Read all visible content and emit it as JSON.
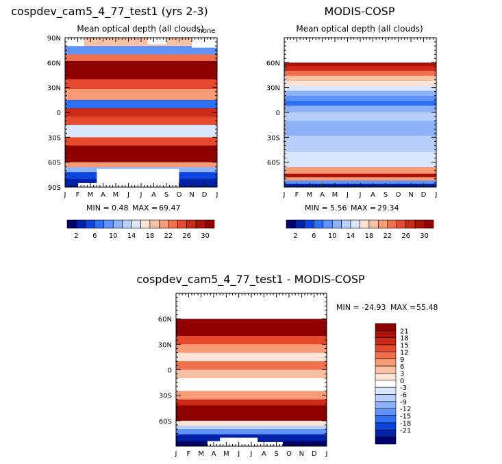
{
  "chart_data": [
    {
      "type": "heatmap",
      "title": "cospdev_cam5_4_77_test1 (yrs 2-3)",
      "subtitle": "Mean optical depth (all clouds)",
      "corner_label": "none",
      "x_ticks": [
        "J",
        "F",
        "M",
        "A",
        "M",
        "J",
        "J",
        "A",
        "S",
        "O",
        "N",
        "D",
        "J"
      ],
      "y_ticks": [
        "90N",
        "60N",
        "30N",
        "0",
        "30S",
        "60S",
        "90S"
      ],
      "ylim": [
        -90,
        90
      ],
      "stats": {
        "min_label": "MIN =",
        "min_value": "0.48",
        "max_label": "MAX =",
        "max_value": "69.47"
      },
      "lat_bands": [
        {
          "lat": [
            80,
            90
          ],
          "value": 18
        },
        {
          "lat": [
            70,
            80
          ],
          "value": 8
        },
        {
          "lat": [
            62,
            70
          ],
          "value": 22
        },
        {
          "lat": [
            40,
            62
          ],
          "value": 32
        },
        {
          "lat": [
            28,
            40
          ],
          "value": 24
        },
        {
          "lat": [
            15,
            28
          ],
          "value": 20
        },
        {
          "lat": [
            5,
            15
          ],
          "value": 7
        },
        {
          "lat": [
            -5,
            5
          ],
          "value": 27
        },
        {
          "lat": [
            -15,
            -5
          ],
          "value": 24
        },
        {
          "lat": [
            -30,
            -15
          ],
          "value": 15
        },
        {
          "lat": [
            -40,
            -30
          ],
          "value": 25
        },
        {
          "lat": [
            -60,
            -40
          ],
          "value": 32
        },
        {
          "lat": [
            -66,
            -60
          ],
          "value": 20
        },
        {
          "lat": [
            -72,
            -66
          ],
          "value": 10
        },
        {
          "lat": [
            -80,
            -72
          ],
          "value": 4
        },
        {
          "lat": [
            -90,
            -80
          ],
          "value": 2
        }
      ],
      "missing_regions": [
        {
          "lat": [
            80,
            90
          ],
          "month": [
            0,
            1.5
          ]
        },
        {
          "lat": [
            82,
            90
          ],
          "month": [
            6.5,
            8
          ]
        },
        {
          "lat": [
            78,
            90
          ],
          "month": [
            10,
            12
          ]
        },
        {
          "lat": [
            -90,
            -85
          ],
          "month": [
            1,
            2.5
          ]
        },
        {
          "lat": [
            -90,
            -68
          ],
          "month": [
            2.5,
            9
          ]
        }
      ],
      "colorbar": {
        "colors": [
          "#00006e",
          "#0022a8",
          "#0c45de",
          "#2f6ff2",
          "#5f93f7",
          "#8eb2f8",
          "#b7cff9",
          "#d9e6fb",
          "#fbe3d6",
          "#f9c1a4",
          "#f69b76",
          "#f0704d",
          "#e54a2e",
          "#cb2a17",
          "#a91109",
          "#8e0000"
        ],
        "labels": [
          "2",
          "6",
          "10",
          "14",
          "18",
          "22",
          "26",
          "30"
        ]
      }
    },
    {
      "type": "heatmap",
      "title": "MODIS-COSP",
      "subtitle": "Mean optical depth (all clouds)",
      "x_ticks": [
        "J",
        "F",
        "M",
        "A",
        "M",
        "J",
        "J",
        "A",
        "S",
        "O",
        "N",
        "D",
        "J"
      ],
      "y_ticks": [
        "60N",
        "30N",
        "0",
        "30S",
        "60S"
      ],
      "ylim": [
        -90,
        90
      ],
      "stats": {
        "min_label": "MIN =",
        "min_value": "5.56",
        "max_label": "MAX =",
        "max_value": "29.34"
      },
      "lat_bands": [
        {
          "lat": [
            60,
            90
          ],
          "value": null
        },
        {
          "lat": [
            56,
            60
          ],
          "value": 29
        },
        {
          "lat": [
            50,
            56
          ],
          "value": 26
        },
        {
          "lat": [
            44,
            50
          ],
          "value": 22
        },
        {
          "lat": [
            38,
            44
          ],
          "value": 19
        },
        {
          "lat": [
            32,
            38
          ],
          "value": 17
        },
        {
          "lat": [
            26,
            32
          ],
          "value": 15
        },
        {
          "lat": [
            20,
            26
          ],
          "value": 11
        },
        {
          "lat": [
            14,
            20
          ],
          "value": 8
        },
        {
          "lat": [
            8,
            14
          ],
          "value": 6
        },
        {
          "lat": [
            0,
            8
          ],
          "value": 10
        },
        {
          "lat": [
            -10,
            0
          ],
          "value": 13
        },
        {
          "lat": [
            -28,
            -10
          ],
          "value": 11
        },
        {
          "lat": [
            -48,
            -28
          ],
          "value": 13
        },
        {
          "lat": [
            -66,
            -48
          ],
          "value": 15
        },
        {
          "lat": [
            -74,
            -66
          ],
          "value": 20
        },
        {
          "lat": [
            -78,
            -74
          ],
          "value": 28
        },
        {
          "lat": [
            -82,
            -78
          ],
          "value": 20
        },
        {
          "lat": [
            -86,
            -82
          ],
          "value": 8
        },
        {
          "lat": [
            -90,
            -86
          ],
          "value": 2
        }
      ],
      "colorbar": {
        "colors": [
          "#00006e",
          "#0022a8",
          "#0c45de",
          "#2f6ff2",
          "#5f93f7",
          "#8eb2f8",
          "#b7cff9",
          "#d9e6fb",
          "#fbe3d6",
          "#f9c1a4",
          "#f69b76",
          "#f0704d",
          "#e54a2e",
          "#cb2a17",
          "#a91109",
          "#8e0000"
        ],
        "labels": [
          "2",
          "6",
          "10",
          "14",
          "18",
          "22",
          "26",
          "30"
        ]
      }
    },
    {
      "type": "heatmap",
      "title": "cospdev_cam5_4_77_test1 - MODIS-COSP",
      "x_ticks": [
        "J",
        "F",
        "M",
        "A",
        "M",
        "J",
        "J",
        "A",
        "S",
        "O",
        "N",
        "D",
        "J"
      ],
      "y_ticks": [
        "60N",
        "30N",
        "0",
        "30S",
        "60S"
      ],
      "ylim": [
        -90,
        90
      ],
      "stats": {
        "min_label": "MIN =",
        "min_value": "-24.93",
        "max_label": "MAX =",
        "max_value": "55.48"
      },
      "lat_bands": [
        {
          "lat": [
            60,
            90
          ],
          "value": null
        },
        {
          "lat": [
            40,
            60
          ],
          "value": 22
        },
        {
          "lat": [
            30,
            40
          ],
          "value": 14
        },
        {
          "lat": [
            20,
            30
          ],
          "value": 8
        },
        {
          "lat": [
            10,
            20
          ],
          "value": 4
        },
        {
          "lat": [
            0,
            10
          ],
          "value": 10
        },
        {
          "lat": [
            -10,
            0
          ],
          "value": 6
        },
        {
          "lat": [
            -25,
            -10
          ],
          "value": 1
        },
        {
          "lat": [
            -35,
            -25
          ],
          "value": 8
        },
        {
          "lat": [
            -42,
            -35
          ],
          "value": 16
        },
        {
          "lat": [
            -60,
            -42
          ],
          "value": 22
        },
        {
          "lat": [
            -66,
            -60
          ],
          "value": 3
        },
        {
          "lat": [
            -70,
            -66
          ],
          "value": -5
        },
        {
          "lat": [
            -76,
            -70
          ],
          "value": -12
        },
        {
          "lat": [
            -84,
            -76
          ],
          "value": -20
        },
        {
          "lat": [
            -90,
            -84
          ],
          "value": -22
        }
      ],
      "missing_regions": [
        {
          "lat": [
            -90,
            -84
          ],
          "month": [
            2.5,
            3.5
          ]
        },
        {
          "lat": [
            -90,
            -80
          ],
          "month": [
            3.5,
            6.5
          ]
        },
        {
          "lat": [
            -90,
            -85
          ],
          "month": [
            6.5,
            8.5
          ]
        }
      ],
      "colorbar": {
        "colors": [
          "#8e0000",
          "#a91109",
          "#cb2a17",
          "#e54a2e",
          "#f0704d",
          "#f69b76",
          "#f9c1a4",
          "#fbe3d6",
          "#ffffff",
          "#d9e6fb",
          "#b7cff9",
          "#8eb2f8",
          "#5f93f7",
          "#2f6ff2",
          "#0c45de",
          "#0022a8",
          "#00006e"
        ],
        "labels": [
          "21",
          "18",
          "15",
          "12",
          "9",
          "6",
          "3",
          "0",
          "-3",
          "-6",
          "-9",
          "-12",
          "-15",
          "-18",
          "-21"
        ]
      }
    }
  ]
}
